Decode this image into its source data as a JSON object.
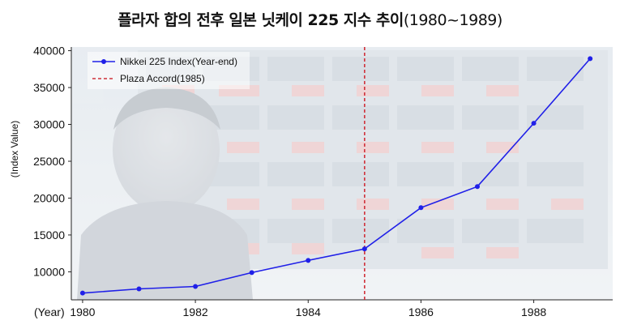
{
  "title": {
    "main": "플라자 합의 전후 일본 닛케이 225 지수 추이",
    "range": "(1980~1989)"
  },
  "chart_data": {
    "type": "line",
    "title": "플라자 합의 전후 일본 닛케이 225 지수 추이(1980~1989)",
    "ylabel": "(Index Value)",
    "xlabel": "(Year)",
    "x": [
      1980,
      1981,
      1982,
      1983,
      1984,
      1985,
      1986,
      1987,
      1988,
      1989
    ],
    "series": [
      {
        "name": "Nikkei 225 Index(Year-end)",
        "color": "#2020e8",
        "values": [
          7116,
          7682,
          8017,
          9894,
          11543,
          13113,
          18701,
          21564,
          30159,
          38916
        ]
      }
    ],
    "annotations": [
      {
        "name": "Plaza Accord(1985)",
        "x": 1985,
        "type": "vertical-line",
        "color": "#d0303a",
        "style": "dashed"
      }
    ],
    "xticks": [
      1980,
      1982,
      1984,
      1986,
      1988
    ],
    "yticks": [
      10000,
      15000,
      20000,
      25000,
      30000,
      35000,
      40000
    ],
    "xlim": [
      1979.8,
      1989.4
    ],
    "ylim": [
      6200,
      40500
    ],
    "legend": "top-left",
    "grid": false,
    "background": "photo of a person in front of a stock ticker board, faded"
  }
}
